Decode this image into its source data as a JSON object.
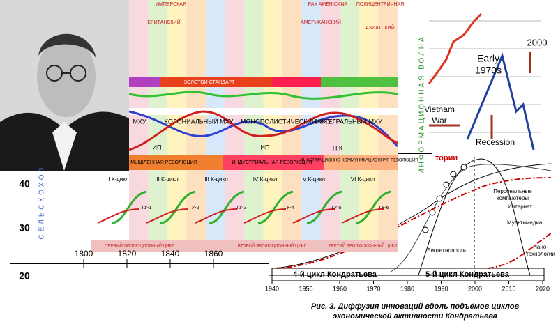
{
  "big_chart": {
    "top_labels": [
      "ИМПЕРСКАЯ",
      "PAX AMERICANA",
      "ПОЛИЦЕНТРИЧНАЯ",
      "БРИТАНСКИЙ",
      "АМЕРИКАНСКИЙ",
      "АЗИАТСКИЙ"
    ],
    "standard": "ЗОЛОТОЙ СТАНДАРТ",
    "mhu": [
      "МХУ",
      "КОЛОНИАЛЬНЫЙ МХУ",
      "МОНОПОЛИСТИЧЕСКИЙ МХУ",
      "ИНТЕГРАЛЬНЫЙ МХУ"
    ],
    "markers": [
      "ИП",
      "ИП",
      "Т Н К"
    ],
    "revolutions": [
      "МЫШЛЕННАЯ РЕВОЛЮЦИЯ",
      "ИНДУСТРИАЛЬНАЯ РЕВОЛЮЦИЯ",
      "ИНФОРМАЦИОННО-КОММУНИКАЦИОННАЯ РЕВОЛЮЦИЯ"
    ],
    "cycles": [
      "I К-цикл",
      "II К-цикл",
      "III К-цикл",
      "IV К-цикл",
      "V К-цикл",
      "VI К-цикл"
    ],
    "tu": [
      "ТУ-1",
      "ТУ-2",
      "ТУ-3",
      "ТУ-4",
      "ТУ-5",
      "ТУ-6"
    ],
    "evolution": [
      "ПЕРВЫЙ ЭВОЛЮЦИОННЫЙ ЦИКЛ",
      "ВТОРОЙ ЭВОЛЮЦИОННЫЙ ЦИКЛ",
      "ТРЕТИЙ ЭВОЛЮЦИОННЫЙ ЦИКЛ"
    ]
  },
  "left_axis": {
    "yticks": [
      "40",
      "30",
      "20"
    ],
    "vertical": "СЕЛЬСКОХОЗ",
    "years": [
      "1800",
      "1820",
      "1840",
      "1860"
    ]
  },
  "right_chart": {
    "labels": [
      "Early",
      "1970s",
      "2000",
      "Vietnam",
      "War",
      "Recession"
    ],
    "vertical": "ИНФОРМАЦИОННАЯ ВОЛНА"
  },
  "diffusion": {
    "partial": "тории",
    "labels": [
      "Персональные",
      "компьютеры",
      "Интернет",
      "Мультимедиа",
      "Нано-",
      "технологии",
      "Биотехнологии"
    ],
    "years": [
      "1940",
      "1950",
      "1960",
      "1970",
      "1980",
      "1990",
      "2000",
      "2010",
      "2020"
    ],
    "cycles": [
      "4-й цикл Кондратьева",
      "5-й цикл Кондратьева"
    ],
    "caption": [
      "Рис. 3. Диффузия инноваций вдоль подъёмов циклов",
      "экономической активности Кондратьева"
    ]
  }
}
